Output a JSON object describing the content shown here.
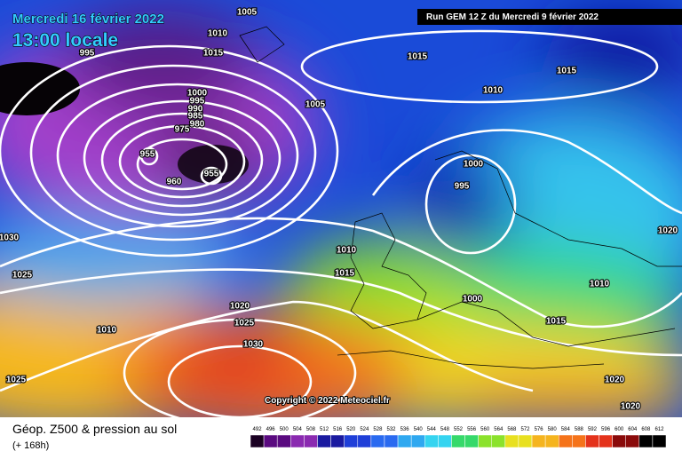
{
  "header": {
    "date": "Mercredi 16 février 2022",
    "time": "13:00 locale",
    "run": "Run GEM 12 Z du Mercredi 9 février 2022"
  },
  "copyright": "Copyright © 2022 Meteociel.fr",
  "footer": {
    "title": "Géop. Z500 & pression au sol",
    "range": "(+ 168h)"
  },
  "isobar_labels": [
    "1005",
    "1010",
    "1015",
    "995",
    "1000",
    "995",
    "990",
    "985",
    "980",
    "975",
    "955",
    "960",
    "955",
    "1005",
    "1015",
    "1015",
    "1010",
    "1000",
    "995",
    "1030",
    "1025",
    "1010",
    "1015",
    "1020",
    "1025",
    "1030",
    "1010",
    "1025",
    "1000",
    "1015",
    "1010",
    "1020",
    "1020",
    "1020"
  ],
  "legend": {
    "values": [
      492,
      496,
      500,
      504,
      508,
      512,
      516,
      520,
      524,
      528,
      532,
      536,
      540,
      544,
      548,
      552,
      556,
      560,
      564,
      568,
      572,
      576,
      580,
      584,
      588,
      592,
      596,
      600,
      604,
      608,
      612
    ]
  }
}
